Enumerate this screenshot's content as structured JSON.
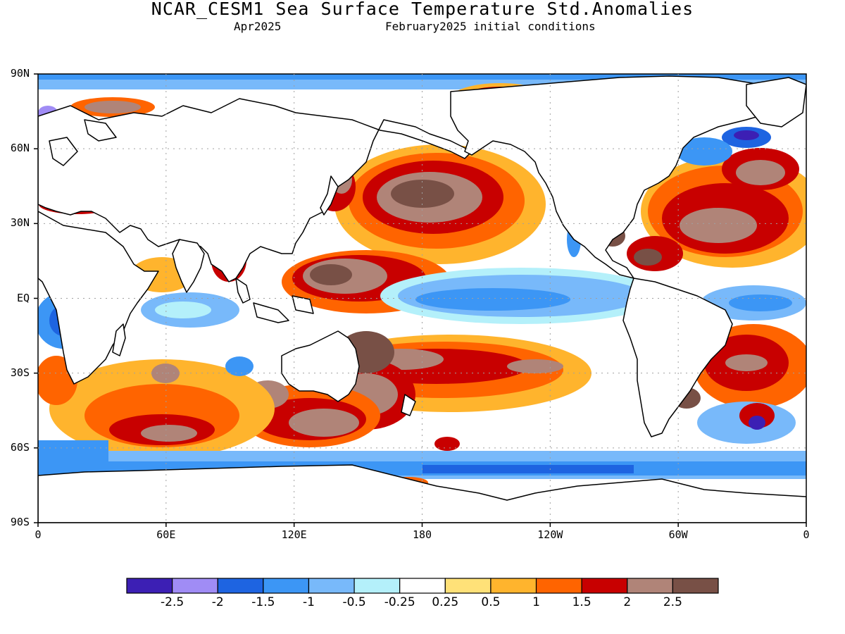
{
  "title": "NCAR_CESM1 Sea Surface Temperature Std.Anomalies",
  "subtitle_left": "Apr2025",
  "subtitle_right": "February2025 initial conditions",
  "lat_labels": [
    "90N",
    "60N",
    "30N",
    "EQ",
    "30S",
    "60S",
    "90S"
  ],
  "lon_labels": [
    "0",
    "60E",
    "120E",
    "180",
    "120W",
    "60W",
    "0"
  ],
  "colorbar": {
    "colors": [
      "#3c1fb4",
      "#a08cf5",
      "#1e64e1",
      "#3c96f5",
      "#78b9fa",
      "#b4f0fa",
      "#ffffff",
      "#ffe178",
      "#ffb42d",
      "#ff6400",
      "#c80000",
      "#b08478",
      "#785046"
    ],
    "labels": [
      "-2.5",
      "-2",
      "-1.5",
      "-1",
      "-0.5",
      "-0.25",
      "0.25",
      "0.5",
      "1",
      "1.5",
      "2",
      "2.5"
    ]
  },
  "colors": {
    "land": "#ffffff",
    "coast": "#000000",
    "grid": "#a0a0a0"
  }
}
